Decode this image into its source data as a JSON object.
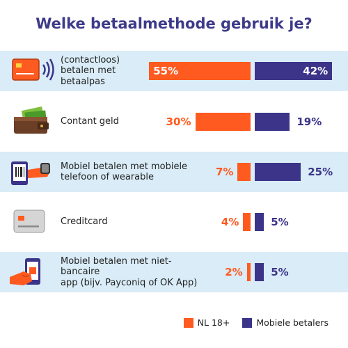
{
  "title": "Welke betaalmethode gebruik je?",
  "colors": {
    "nl": "#ff5a1f",
    "mobile": "#3b3489",
    "row_shade": "#d9ecf7"
  },
  "chart_data": {
    "type": "bar",
    "title": "Welke betaalmethode gebruik je?",
    "categories": [
      "(contactloos) betalen met betaalpas",
      "Contant geld",
      "Mobiel betalen met mobiele telefoon of wearable",
      "Creditcard",
      "Mobiel betalen met niet-bancaire app (bijv. Payconiq of OK App)"
    ],
    "label_lines": [
      [
        "(contactloos)",
        "betalen met",
        "betaalpas"
      ],
      [
        "Contant geld"
      ],
      [
        "Mobiel betalen met mobiele",
        "telefoon of wearable"
      ],
      [
        "Creditcard"
      ],
      [
        "Mobiel betalen met niet-bancaire",
        "app (bijv. Payconiq of OK App)"
      ]
    ],
    "icons": [
      "contactless-card-icon",
      "wallet-cash-icon",
      "smartwatch-phone-icon",
      "credit-card-icon",
      "phone-in-hand-icon"
    ],
    "series": [
      {
        "name": "NL 18+",
        "values": [
          55,
          30,
          7,
          4,
          2
        ],
        "labels": [
          "55%",
          "30%",
          "7%",
          "4%",
          "2%"
        ]
      },
      {
        "name": "Mobiele betalers",
        "values": [
          42,
          19,
          25,
          5,
          5
        ],
        "labels": [
          "42%",
          "19%",
          "25%",
          "5%",
          "5%"
        ]
      }
    ],
    "legend_position": "bottom-right"
  }
}
